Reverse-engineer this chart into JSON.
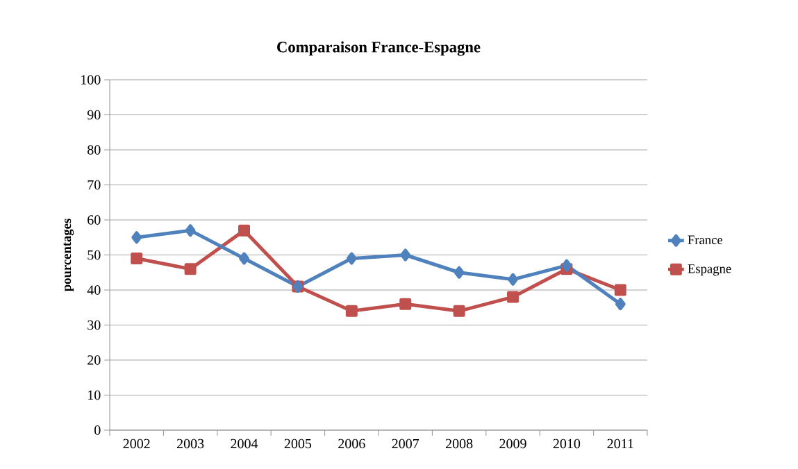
{
  "chart_data": {
    "type": "line",
    "title": "Comparaison France-Espagne",
    "ylabel": "pourcentages",
    "categories": [
      "2002",
      "2003",
      "2004",
      "2005",
      "2006",
      "2007",
      "2008",
      "2009",
      "2010",
      "2011"
    ],
    "series": [
      {
        "name": "France",
        "color": "#4f81bd",
        "marker": "diamond",
        "values": [
          55,
          57,
          49,
          41,
          49,
          50,
          45,
          43,
          47,
          36
        ]
      },
      {
        "name": "Espagne",
        "color": "#c0504d",
        "marker": "square",
        "values": [
          49,
          46,
          57,
          41,
          34,
          36,
          34,
          38,
          46,
          40
        ]
      }
    ],
    "ylim": [
      0,
      100
    ],
    "yticks": [
      0,
      10,
      20,
      30,
      40,
      50,
      60,
      70,
      80,
      90,
      100
    ],
    "grid": "y",
    "legend": "right",
    "line_style": "solid"
  }
}
